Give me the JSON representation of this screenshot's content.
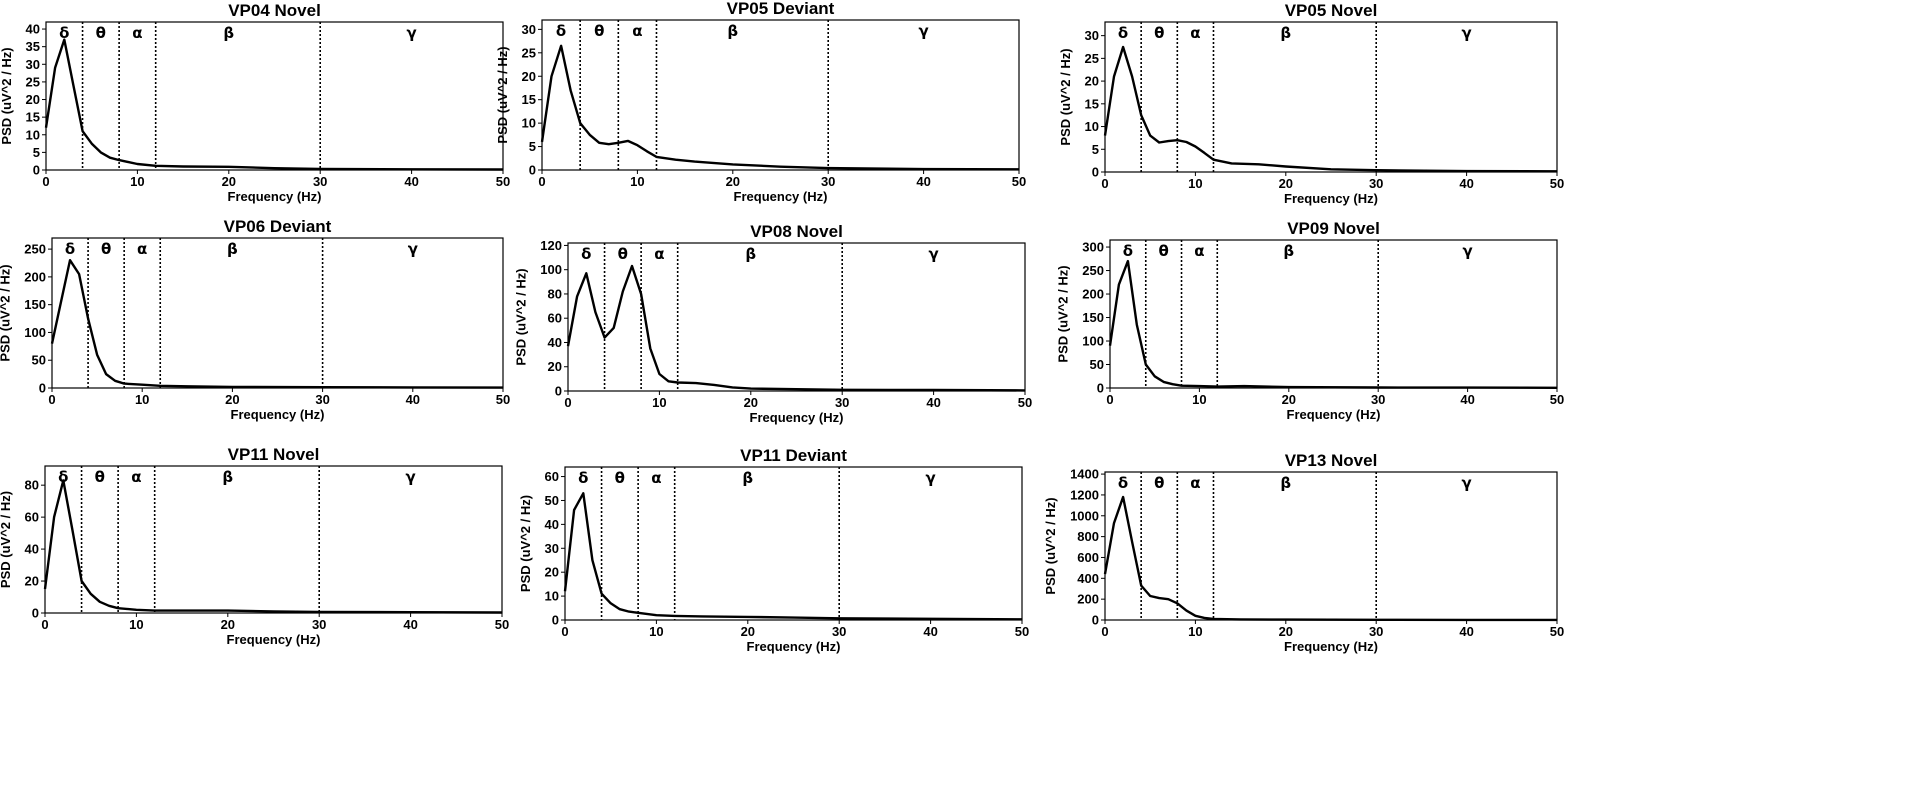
{
  "chart_data": [
    {
      "type": "line",
      "title": "VP04 Novel",
      "xlabel": "Frequency (Hz)",
      "ylabel": "PSD (uV^2 / Hz)",
      "xlim": [
        0,
        50
      ],
      "ylim": [
        0,
        42
      ],
      "xticks": [
        0,
        10,
        20,
        30,
        40,
        50
      ],
      "yticks": [
        0,
        5,
        10,
        15,
        20,
        25,
        30,
        35,
        40
      ],
      "band_boundaries": [
        4,
        8,
        12,
        30
      ],
      "band_labels": [
        {
          "label": "δ",
          "x": 2
        },
        {
          "label": "θ",
          "x": 6
        },
        {
          "label": "α",
          "x": 10
        },
        {
          "label": "β",
          "x": 20
        },
        {
          "label": "γ",
          "x": 40
        }
      ],
      "series": [
        {
          "x": [
            0,
            1,
            2,
            3,
            4,
            5,
            6,
            7,
            8,
            10,
            12,
            15,
            20,
            25,
            30,
            40,
            50
          ],
          "y": [
            12,
            29,
            37,
            24,
            11,
            7.5,
            5,
            3.5,
            2.8,
            1.7,
            1.2,
            1,
            0.9,
            0.5,
            0.3,
            0.2,
            0.15
          ]
        }
      ]
    },
    {
      "type": "line",
      "title": "VP05 Deviant",
      "xlabel": "Frequency (Hz)",
      "ylabel": "PSD (uV^2 / Hz)",
      "xlim": [
        0,
        50
      ],
      "ylim": [
        0,
        32
      ],
      "xticks": [
        0,
        10,
        20,
        30,
        40,
        50
      ],
      "yticks": [
        0,
        5,
        10,
        15,
        20,
        25,
        30
      ],
      "band_boundaries": [
        4,
        8,
        12,
        30
      ],
      "band_labels": [
        {
          "label": "δ",
          "x": 2
        },
        {
          "label": "θ",
          "x": 6
        },
        {
          "label": "α",
          "x": 10
        },
        {
          "label": "β",
          "x": 20
        },
        {
          "label": "γ",
          "x": 40
        }
      ],
      "series": [
        {
          "x": [
            0,
            1,
            2,
            3,
            4,
            5,
            6,
            7,
            8,
            9,
            10,
            11,
            12,
            14,
            16,
            20,
            25,
            30,
            40,
            50
          ],
          "y": [
            6,
            20,
            26.5,
            17,
            10,
            7.5,
            5.8,
            5.5,
            5.8,
            6.2,
            5.3,
            4,
            2.8,
            2.2,
            1.8,
            1.2,
            0.7,
            0.4,
            0.2,
            0.15
          ]
        }
      ]
    },
    {
      "type": "line",
      "title": "VP05 Novel",
      "xlabel": "Frequency (Hz)",
      "ylabel": "PSD (uV^2 / Hz)",
      "xlim": [
        0,
        50
      ],
      "ylim": [
        0,
        33
      ],
      "xticks": [
        0,
        10,
        20,
        30,
        40,
        50
      ],
      "yticks": [
        0,
        5,
        10,
        15,
        20,
        25,
        30
      ],
      "band_boundaries": [
        4,
        8,
        12,
        30
      ],
      "band_labels": [
        {
          "label": "δ",
          "x": 2
        },
        {
          "label": "θ",
          "x": 6
        },
        {
          "label": "α",
          "x": 10
        },
        {
          "label": "β",
          "x": 20
        },
        {
          "label": "γ",
          "x": 40
        }
      ],
      "series": [
        {
          "x": [
            0,
            1,
            2,
            3,
            4,
            5,
            6,
            7,
            8,
            9,
            10,
            11,
            12,
            14,
            17,
            20,
            25,
            30,
            40,
            50
          ],
          "y": [
            8,
            21,
            27.5,
            21,
            12.5,
            8,
            6.5,
            6.8,
            7,
            6.6,
            5.6,
            4.2,
            2.7,
            1.9,
            1.7,
            1.2,
            0.6,
            0.4,
            0.2,
            0.15
          ]
        }
      ]
    },
    {
      "type": "line",
      "title": "VP06 Deviant",
      "xlabel": "Frequency (Hz)",
      "ylabel": "PSD (uV^2 / Hz)",
      "xlim": [
        0,
        50
      ],
      "ylim": [
        0,
        270
      ],
      "xticks": [
        0,
        10,
        20,
        30,
        40,
        50
      ],
      "yticks": [
        0,
        50,
        100,
        150,
        200,
        250
      ],
      "band_boundaries": [
        4,
        8,
        12,
        30
      ],
      "band_labels": [
        {
          "label": "δ",
          "x": 2
        },
        {
          "label": "θ",
          "x": 6
        },
        {
          "label": "α",
          "x": 10
        },
        {
          "label": "β",
          "x": 20
        },
        {
          "label": "γ",
          "x": 40
        }
      ],
      "series": [
        {
          "x": [
            0,
            1,
            2,
            3,
            4,
            5,
            6,
            7,
            8,
            10,
            12,
            15,
            20,
            30,
            40,
            50
          ],
          "y": [
            80,
            155,
            230,
            205,
            125,
            60,
            25,
            13,
            8,
            6,
            4,
            3,
            2,
            1.5,
            1,
            0.8
          ]
        }
      ]
    },
    {
      "type": "line",
      "title": "VP08 Novel",
      "xlabel": "Frequency (Hz)",
      "ylabel": "PSD (uV^2 / Hz)",
      "xlim": [
        0,
        50
      ],
      "ylim": [
        0,
        122
      ],
      "xticks": [
        0,
        10,
        20,
        30,
        40,
        50
      ],
      "yticks": [
        0,
        20,
        40,
        60,
        80,
        100,
        120
      ],
      "band_boundaries": [
        4,
        8,
        12,
        30
      ],
      "band_labels": [
        {
          "label": "δ",
          "x": 2
        },
        {
          "label": "θ",
          "x": 6
        },
        {
          "label": "α",
          "x": 10
        },
        {
          "label": "β",
          "x": 20
        },
        {
          "label": "γ",
          "x": 40
        }
      ],
      "series": [
        {
          "x": [
            0,
            1,
            2,
            3,
            4,
            5,
            6,
            7,
            8,
            9,
            10,
            11,
            12,
            14,
            16,
            18,
            20,
            25,
            30,
            40,
            50
          ],
          "y": [
            37,
            78,
            97,
            65,
            44,
            52,
            82,
            103,
            80,
            35,
            14,
            8,
            7,
            6.5,
            5,
            3,
            2,
            1.5,
            1,
            0.8,
            0.5
          ]
        }
      ]
    },
    {
      "type": "line",
      "title": "VP09 Novel",
      "xlabel": "Frequency (Hz)",
      "ylabel": "PSD (uV^2 / Hz)",
      "xlim": [
        0,
        50
      ],
      "ylim": [
        0,
        315
      ],
      "xticks": [
        0,
        10,
        20,
        30,
        40,
        50
      ],
      "yticks": [
        0,
        50,
        100,
        150,
        200,
        250,
        300
      ],
      "band_boundaries": [
        4,
        8,
        12,
        30
      ],
      "band_labels": [
        {
          "label": "δ",
          "x": 2
        },
        {
          "label": "θ",
          "x": 6
        },
        {
          "label": "α",
          "x": 10
        },
        {
          "label": "β",
          "x": 20
        },
        {
          "label": "γ",
          "x": 40
        }
      ],
      "series": [
        {
          "x": [
            0,
            1,
            2,
            3,
            4,
            5,
            6,
            7,
            8,
            10,
            12,
            15,
            20,
            30,
            40,
            50
          ],
          "y": [
            90,
            220,
            270,
            135,
            50,
            25,
            13,
            8,
            5,
            4,
            3,
            4,
            2,
            1,
            0.8,
            0.5
          ]
        }
      ]
    },
    {
      "type": "line",
      "title": "VP11 Novel",
      "xlabel": "Frequency (Hz)",
      "ylabel": "PSD (uV^2 / Hz)",
      "xlim": [
        0,
        50
      ],
      "ylim": [
        0,
        92
      ],
      "xticks": [
        0,
        10,
        20,
        30,
        40,
        50
      ],
      "yticks": [
        0,
        20,
        40,
        60,
        80
      ],
      "band_boundaries": [
        4,
        8,
        12,
        30
      ],
      "band_labels": [
        {
          "label": "δ",
          "x": 2
        },
        {
          "label": "θ",
          "x": 6
        },
        {
          "label": "α",
          "x": 10
        },
        {
          "label": "β",
          "x": 20
        },
        {
          "label": "γ",
          "x": 40
        }
      ],
      "series": [
        {
          "x": [
            0,
            1,
            2,
            3,
            4,
            5,
            6,
            7,
            8,
            10,
            12,
            15,
            20,
            25,
            30,
            40,
            50
          ],
          "y": [
            15,
            60,
            83,
            52,
            20,
            12,
            7,
            4.5,
            3,
            2,
            1.5,
            1.5,
            1.5,
            1,
            0.7,
            0.5,
            0.3
          ]
        }
      ]
    },
    {
      "type": "line",
      "title": "VP11 Deviant",
      "xlabel": "Frequency (Hz)",
      "ylabel": "PSD (uV^2 / Hz)",
      "xlim": [
        0,
        50
      ],
      "ylim": [
        0,
        64
      ],
      "xticks": [
        0,
        10,
        20,
        30,
        40,
        50
      ],
      "yticks": [
        0,
        10,
        20,
        30,
        40,
        50,
        60
      ],
      "band_boundaries": [
        4,
        8,
        12,
        30
      ],
      "band_labels": [
        {
          "label": "δ",
          "x": 2
        },
        {
          "label": "θ",
          "x": 6
        },
        {
          "label": "α",
          "x": 10
        },
        {
          "label": "β",
          "x": 20
        },
        {
          "label": "γ",
          "x": 40
        }
      ],
      "series": [
        {
          "x": [
            0,
            1,
            2,
            3,
            4,
            5,
            6,
            7,
            8,
            10,
            12,
            15,
            20,
            25,
            30,
            40,
            50
          ],
          "y": [
            12,
            46,
            53,
            25,
            11,
            7,
            4.5,
            3.5,
            3,
            2,
            1.7,
            1.5,
            1.3,
            1,
            0.7,
            0.5,
            0.3
          ]
        }
      ]
    },
    {
      "type": "line",
      "title": "VP13 Novel",
      "xlabel": "Frequency (Hz)",
      "ylabel": "PSD (uV^2 / Hz)",
      "xlim": [
        0,
        50
      ],
      "ylim": [
        0,
        1420
      ],
      "xticks": [
        0,
        10,
        20,
        30,
        40,
        50
      ],
      "yticks": [
        0,
        200,
        400,
        600,
        800,
        1000,
        1200,
        1400
      ],
      "band_boundaries": [
        4,
        8,
        12,
        30
      ],
      "band_labels": [
        {
          "label": "δ",
          "x": 2
        },
        {
          "label": "θ",
          "x": 6
        },
        {
          "label": "α",
          "x": 10
        },
        {
          "label": "β",
          "x": 20
        },
        {
          "label": "γ",
          "x": 40
        }
      ],
      "series": [
        {
          "x": [
            0,
            1,
            2,
            3,
            4,
            5,
            6,
            7,
            8,
            9,
            10,
            11,
            12,
            15,
            20,
            30,
            40,
            50
          ],
          "y": [
            440,
            930,
            1180,
            750,
            330,
            230,
            210,
            200,
            160,
            90,
            40,
            20,
            10,
            6,
            4,
            2,
            1,
            1
          ]
        }
      ]
    }
  ]
}
